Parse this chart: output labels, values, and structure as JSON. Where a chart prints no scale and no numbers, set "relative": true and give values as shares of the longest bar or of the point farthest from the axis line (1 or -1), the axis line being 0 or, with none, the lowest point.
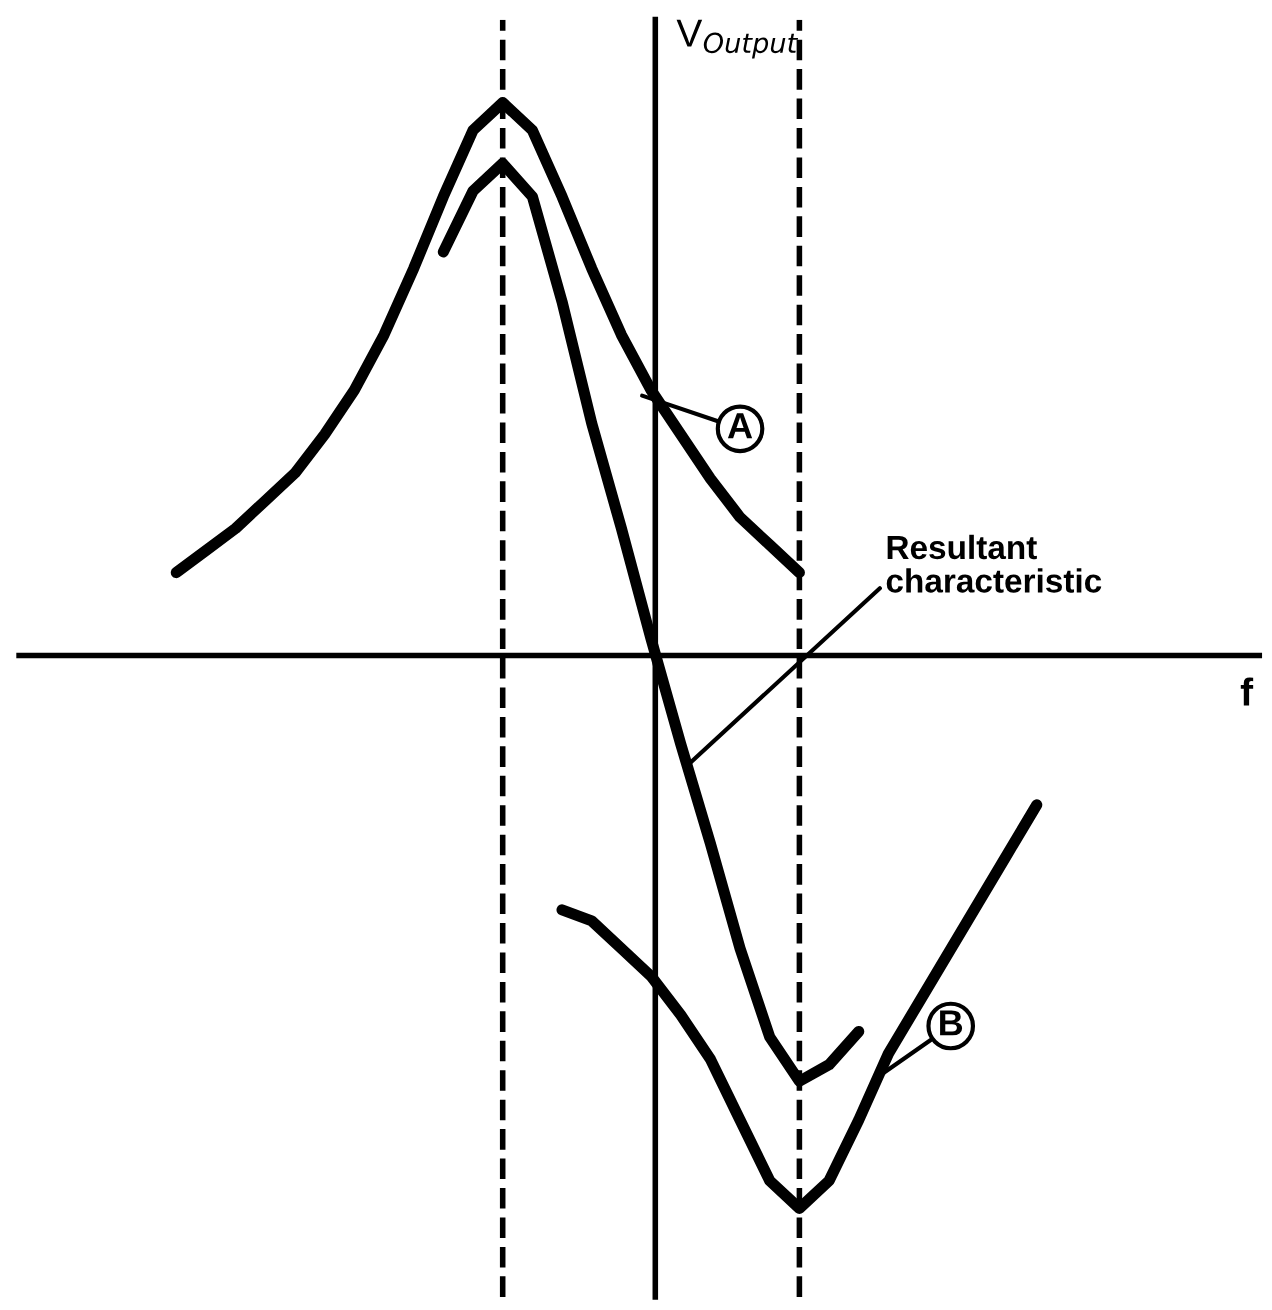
{
  "chart_data": {
    "type": "line",
    "relative": true,
    "xlabel": "f",
    "ylabel": "V$_{Output}$",
    "marker": "none",
    "line_style": "solid",
    "categories": [
      null,
      null,
      null,
      null,
      null,
      null,
      null,
      null,
      null,
      null,
      null,
      null,
      null,
      null,
      null,
      null,
      null,
      null,
      null,
      null,
      null,
      null,
      null,
      null,
      null,
      null,
      null,
      null,
      null,
      null
    ],
    "series": [
      {
        "name": "A",
        "color": "#000000",
        "values": [
          0.15,
          0.19,
          0.23,
          0.28,
          0.33,
          0.4,
          0.48,
          0.58,
          0.7,
          0.83,
          0.95,
          1.0,
          0.95,
          0.83,
          0.7,
          0.58,
          0.48,
          0.4,
          0.32,
          0.25,
          0.2,
          0.15,
          null,
          null,
          null,
          null,
          null,
          null,
          null,
          null
        ]
      },
      {
        "name": "Resultant characteristic",
        "color": "#000000",
        "values": [
          null,
          null,
          null,
          null,
          null,
          null,
          null,
          null,
          null,
          0.73,
          0.84,
          0.89,
          0.83,
          0.64,
          0.42,
          0.23,
          0.03,
          -0.16,
          -0.34,
          -0.53,
          -0.69,
          -0.77,
          -0.74,
          -0.68,
          null,
          null,
          null,
          null,
          null,
          null
        ]
      },
      {
        "name": "B",
        "color": "#000000",
        "values": [
          null,
          null,
          null,
          null,
          null,
          null,
          null,
          null,
          null,
          null,
          null,
          null,
          null,
          -0.46,
          -0.48,
          -0.53,
          -0.58,
          -0.65,
          -0.73,
          -0.84,
          -0.95,
          -1,
          -0.95,
          -0.84,
          -0.72,
          -0.63,
          -0.54,
          -0.45,
          -0.36,
          -0.27
        ]
      }
    ]
  }
}
